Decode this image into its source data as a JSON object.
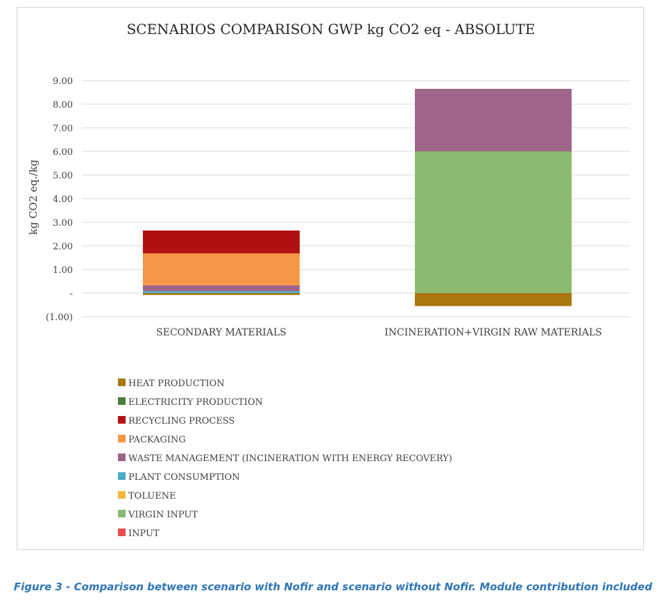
{
  "chart_data": {
    "type": "bar",
    "stacked": true,
    "title": "SCENARIOS COMPARISON GWP kg CO2 eq - ABSOLUTE",
    "xlabel": "",
    "ylabel": "kg CO2 eq./kg",
    "ylim": [
      -1,
      9
    ],
    "yticks": [
      {
        "value": 9,
        "label": "9.00"
      },
      {
        "value": 8,
        "label": "8.00"
      },
      {
        "value": 7,
        "label": "7.00"
      },
      {
        "value": 6,
        "label": "6.00"
      },
      {
        "value": 5,
        "label": "5.00"
      },
      {
        "value": 4,
        "label": "4.00"
      },
      {
        "value": 3,
        "label": "3.00"
      },
      {
        "value": 2,
        "label": "2.00"
      },
      {
        "value": 1,
        "label": "1.00"
      },
      {
        "value": 0,
        "label": "-"
      },
      {
        "value": -1,
        "label": "(1.00)"
      }
    ],
    "grid": true,
    "legend_position": "bottom",
    "categories": [
      "SECONDARY MATERIALS",
      "INCINERATION+VIRGIN RAW MATERIALS"
    ],
    "series": [
      {
        "name": "INPUT",
        "color": "#e84c4c",
        "values": [
          0,
          0
        ]
      },
      {
        "name": "VIRGIN INPUT",
        "color": "#8cbb6f",
        "values": [
          0,
          6.0
        ]
      },
      {
        "name": "TOLUENE",
        "color": "#efb73e",
        "values": [
          0,
          0
        ]
      },
      {
        "name": "PLANT CONSUMPTION",
        "color": "#4bacc6",
        "values": [
          0.08,
          0
        ]
      },
      {
        "name": "WASTE MANAGEMENT (INCINERATION WITH ENERGY RECOVERY)",
        "color": "#9e6589",
        "values": [
          0.25,
          2.65
        ]
      },
      {
        "name": "PACKAGING",
        "color": "#f79646",
        "values": [
          1.35,
          0
        ]
      },
      {
        "name": "RECYCLING PROCESS",
        "color": "#b01111",
        "values": [
          0.97,
          0
        ]
      },
      {
        "name": "ELECTRICITY PRODUCTION",
        "color": "#4a7e3a",
        "values": [
          0,
          0
        ]
      },
      {
        "name": "HEAT PRODUCTION",
        "color": "#a8770e",
        "values": [
          -0.08,
          -0.55
        ]
      }
    ],
    "legend_order": [
      "HEAT PRODUCTION",
      "ELECTRICITY PRODUCTION",
      "RECYCLING PROCESS",
      "PACKAGING",
      "WASTE MANAGEMENT (INCINERATION WITH ENERGY RECOVERY)",
      "PLANT CONSUMPTION",
      "TOLUENE",
      "VIRGIN INPUT",
      "INPUT"
    ]
  },
  "caption": "Figure 3 - Comparison between scenario with Nofir and scenario without Nofir. Module contribution included"
}
